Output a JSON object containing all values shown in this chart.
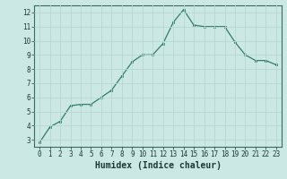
{
  "x": [
    0,
    1,
    2,
    3,
    4,
    5,
    6,
    7,
    8,
    9,
    10,
    11,
    12,
    13,
    14,
    15,
    16,
    17,
    18,
    19,
    20,
    21,
    22,
    23
  ],
  "y": [
    2.8,
    3.9,
    4.3,
    5.4,
    5.5,
    5.5,
    6.0,
    6.5,
    7.5,
    8.5,
    9.0,
    9.0,
    9.8,
    11.3,
    12.2,
    11.1,
    11.0,
    11.0,
    11.0,
    9.9,
    9.0,
    8.6,
    8.6,
    8.3
  ],
  "line_color": "#2e7d6e",
  "marker_color": "#2e7d6e",
  "bg_color": "#cce8e4",
  "grid_color": "#b8d8d4",
  "xlabel": "Humidex (Indice chaleur)",
  "xlim": [
    -0.5,
    23.5
  ],
  "ylim": [
    2.5,
    12.5
  ],
  "yticks": [
    3,
    4,
    5,
    6,
    7,
    8,
    9,
    10,
    11,
    12
  ],
  "xticks": [
    0,
    1,
    2,
    3,
    4,
    5,
    6,
    7,
    8,
    9,
    10,
    11,
    12,
    13,
    14,
    15,
    16,
    17,
    18,
    19,
    20,
    21,
    22,
    23
  ],
  "tick_label_fontsize": 5.5,
  "xlabel_fontsize": 7.0
}
